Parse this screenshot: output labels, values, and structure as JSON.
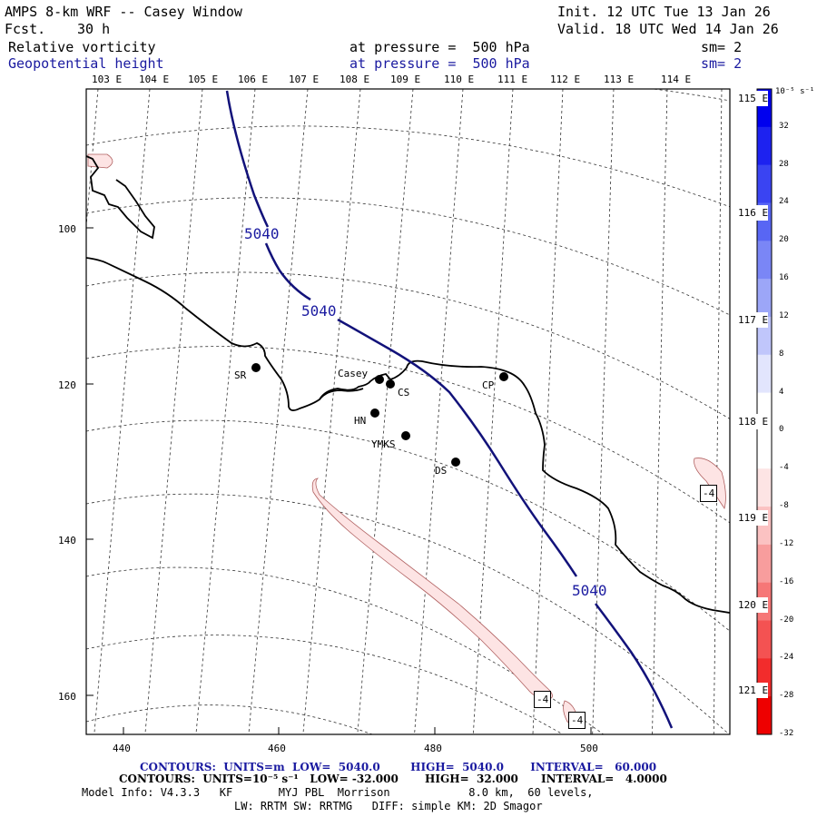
{
  "header": {
    "title": "AMPS 8-km WRF -- Casey Window",
    "fcst_label": "Fcst.",
    "fcst_value": "30 h",
    "init": "Init. 12 UTC Tue 13 Jan 26",
    "valid": "Valid. 18 UTC Wed 14 Jan 26",
    "field1_name": "Relative vorticity",
    "field1_level": "at pressure =  500 hPa",
    "field1_sm": "sm= 2",
    "field2_name": "Geopotential height",
    "field2_level": "at pressure =  500 hPa",
    "field2_sm": "sm= 2"
  },
  "longitudes_top": [
    "103 E",
    "104 E",
    "105 E",
    "106 E",
    "107 E",
    "108 E",
    "109 E",
    "110 E",
    "111 E",
    "112 E",
    "113 E",
    "114 E"
  ],
  "longitudes_right": [
    "115 E",
    "116 E",
    "117 E",
    "118 E",
    "119 E",
    "120 E",
    "121 E"
  ],
  "x_ticks": [
    "440",
    "460",
    "480",
    "500"
  ],
  "y_ticks": [
    "100",
    "120",
    "140",
    "160"
  ],
  "stations": [
    "SR",
    "Casey",
    "CS",
    "HN",
    "YMKS",
    "CP",
    "DS"
  ],
  "contour_labels": {
    "height": [
      "5040",
      "5040",
      "5040"
    ],
    "vorticity": [
      "-4",
      "-4",
      "-4"
    ]
  },
  "colorbar": {
    "unit": "10⁻⁵ s⁻¹",
    "labels": [
      "32",
      "28",
      "24",
      "20",
      "16",
      "12",
      "8",
      "4",
      "0",
      "-4",
      "-8",
      "-12",
      "-16",
      "-20",
      "-24",
      "-28",
      "-32"
    ],
    "colors_top_to_bottom": [
      "#0000ee",
      "#1d22f0",
      "#3a44f2",
      "#5866f4",
      "#7a86f6",
      "#9ca6f8",
      "#c0c6fb",
      "#e2e5fd",
      "#ffffff",
      "#ffffff",
      "#fde4e4",
      "#fbc2c2",
      "#f89d9d",
      "#f67777",
      "#f45252",
      "#f22c2c",
      "#ee0000"
    ]
  },
  "footer": {
    "line1": "CONTOURS:  UNITS=m  LOW=  5040.0        HIGH=  5040.0       INTERVAL=   60.000",
    "line2": "CONTOURS:  UNITS=10⁻⁵ s⁻¹   LOW= -32.000       HIGH=  32.000      INTERVAL=   4.0000",
    "line3": "Model Info: V4.3.3   KF       MYJ PBL  Morrison            8.0 km,  60 levels,",
    "line4": "LW: RRTM SW: RRTMG   DIFF: simple KM: 2D Smagor"
  }
}
